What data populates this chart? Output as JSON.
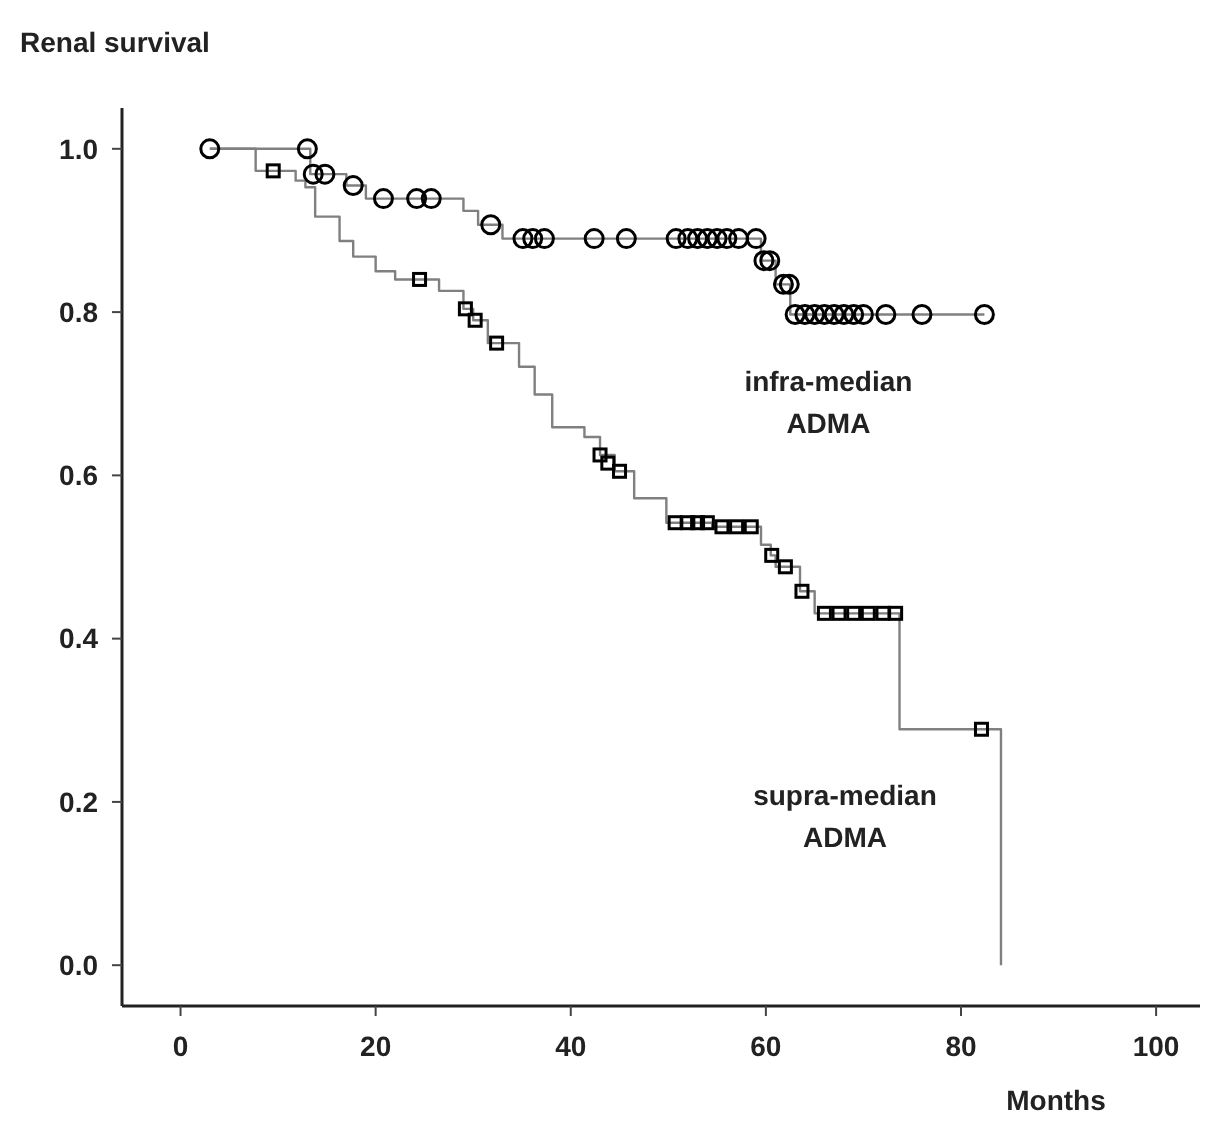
{
  "chart_data": {
    "type": "step",
    "ylabel": "Renal survival",
    "xlabel": "Months",
    "xlim": [
      -6,
      104.5
    ],
    "ylim": [
      -0.05,
      1.05
    ],
    "xticks": [
      0,
      20,
      40,
      60,
      80,
      100
    ],
    "yticks": [
      {
        "value": 0,
        "label": "0.0"
      },
      {
        "value": 0.2,
        "label": "0.2"
      },
      {
        "value": 0.4,
        "label": "0.4"
      },
      {
        "value": 0.6,
        "label": "0.6"
      },
      {
        "value": 0.8,
        "label": "0.8"
      },
      {
        "value": 1,
        "label": "1.0"
      }
    ],
    "grid": false,
    "series": [
      {
        "name": "infra-median ADMA",
        "color": "#808080",
        "x": [
          3,
          13.3,
          17,
          19,
          29,
          30.5,
          33,
          59.5,
          61,
          62.5,
          82.4
        ],
        "values": [
          1.0,
          0.969,
          0.955,
          0.939,
          0.924,
          0.907,
          0.89,
          0.863,
          0.834,
          0.797,
          0.797
        ]
      },
      {
        "name": "supra-median ADMA",
        "color": "#808080",
        "x": [
          3,
          7.7,
          11.8,
          12.8,
          13.8,
          16.3,
          17.7,
          20,
          22,
          26.5,
          29,
          30,
          31.5,
          34.7,
          36.3,
          38.1,
          41.4,
          43,
          44.5,
          46.5,
          49.8,
          54.5,
          59.5,
          60.5,
          61,
          63.5,
          65,
          73.7,
          84.1
        ],
        "values": [
          1.0,
          0.973,
          0.961,
          0.953,
          0.917,
          0.887,
          0.868,
          0.85,
          0.84,
          0.826,
          0.804,
          0.79,
          0.762,
          0.733,
          0.699,
          0.659,
          0.647,
          0.625,
          0.605,
          0.572,
          0.542,
          0.537,
          0.515,
          0.502,
          0.488,
          0.458,
          0.431,
          0.289,
          0.0
        ]
      },
      {
        "type": "scatter",
        "marker": "circle",
        "color": "#000000",
        "x": [
          3,
          13,
          13.6,
          14.8,
          17.7,
          20.8,
          24.2,
          25.7,
          31.8,
          35.1,
          36.1,
          37.3,
          42.4,
          45.7,
          50.8,
          52,
          53,
          54,
          55,
          56,
          57.2,
          59,
          59.8,
          60.4,
          61.8,
          62.4,
          63,
          64,
          65,
          66,
          67,
          68,
          69,
          70,
          72.3,
          76,
          82.4
        ],
        "values": [
          1.0,
          1.0,
          0.969,
          0.969,
          0.955,
          0.939,
          0.939,
          0.939,
          0.907,
          0.89,
          0.89,
          0.89,
          0.89,
          0.89,
          0.89,
          0.89,
          0.89,
          0.89,
          0.89,
          0.89,
          0.89,
          0.89,
          0.863,
          0.863,
          0.834,
          0.834,
          0.797,
          0.797,
          0.797,
          0.797,
          0.797,
          0.797,
          0.797,
          0.797,
          0.797,
          0.797,
          0.797
        ]
      },
      {
        "type": "scatter",
        "marker": "square",
        "color": "#000000",
        "x": [
          9.5,
          24.5,
          29.2,
          30.2,
          32.4,
          43,
          43.8,
          45,
          50.7,
          52,
          53,
          54,
          55.5,
          57,
          58.5,
          60.6,
          62,
          63.7,
          66,
          67.5,
          69,
          70.5,
          72,
          73.3,
          82.1
        ],
        "values": [
          0.973,
          0.84,
          0.804,
          0.79,
          0.762,
          0.625,
          0.615,
          0.605,
          0.542,
          0.542,
          0.542,
          0.542,
          0.537,
          0.537,
          0.537,
          0.502,
          0.488,
          0.458,
          0.431,
          0.431,
          0.431,
          0.431,
          0.431,
          0.431,
          0.289
        ]
      }
    ]
  }
}
